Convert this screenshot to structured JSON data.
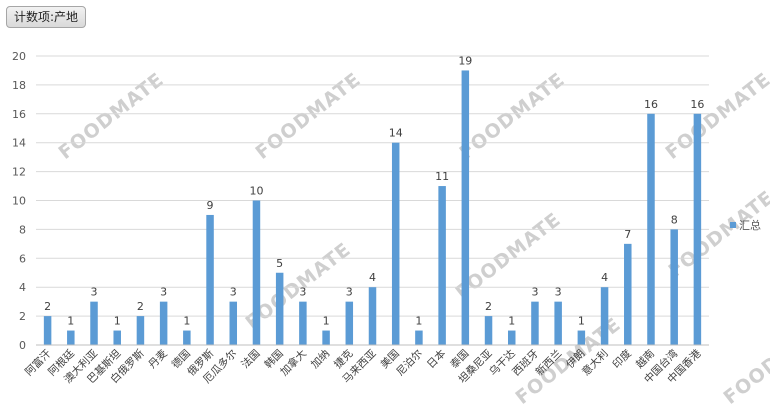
{
  "field_button": {
    "label": "计数项:产地"
  },
  "watermark": "FOODMATE",
  "colors": {
    "bar": "#5b9bd5",
    "grid": "#d9d9d9",
    "axis": "#bfbfbf"
  },
  "chart_data": {
    "type": "bar",
    "categories": [
      "阿富汗",
      "阿根廷",
      "澳大利亚",
      "巴基斯坦",
      "白俄罗斯",
      "丹麦",
      "德国",
      "俄罗斯",
      "厄瓜多尔",
      "法国",
      "韩国",
      "加拿大",
      "加纳",
      "捷克",
      "马来西亚",
      "美国",
      "尼泊尔",
      "日本",
      "泰国",
      "坦桑尼亚",
      "乌干达",
      "西班牙",
      "新西兰",
      "伊朗",
      "意大利",
      "印度",
      "越南",
      "中国台湾",
      "中国香港"
    ],
    "series": [
      {
        "name": "汇总",
        "values": [
          2,
          1,
          3,
          1,
          2,
          3,
          1,
          9,
          3,
          10,
          5,
          3,
          1,
          3,
          4,
          14,
          1,
          11,
          19,
          2,
          1,
          3,
          3,
          1,
          4,
          7,
          16,
          8,
          16
        ]
      }
    ],
    "ylim": [
      0,
      20
    ],
    "yticks": [
      0,
      2,
      4,
      6,
      8,
      10,
      12,
      14,
      16,
      18,
      20
    ],
    "grid": true,
    "legend": "right"
  }
}
